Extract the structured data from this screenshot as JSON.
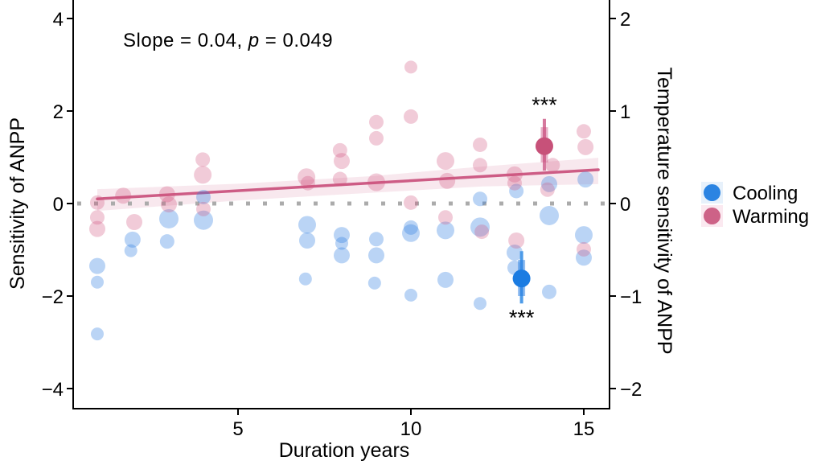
{
  "chart_data": {
    "type": "scatter",
    "title": "",
    "annotation": {
      "prefix": "Slope = 0.04, ",
      "italic_part": "p",
      "suffix": " = 0.049",
      "color": "#d4688c"
    },
    "axes": {
      "left": {
        "label": "Sensitivity of ANPP",
        "ticks": [
          "4",
          "2",
          "0",
          "−2",
          "−4"
        ],
        "tick_values": [
          4,
          2,
          0,
          -2,
          -4
        ],
        "range": [
          -4.4,
          4.4
        ]
      },
      "right": {
        "label": "Temperature sensitivity of ANPP",
        "ticks": [
          "2",
          "1",
          "0",
          "−1",
          "−2"
        ],
        "tick_values_left_units": [
          4,
          2,
          0,
          -2,
          -4
        ],
        "range": [
          -2.2,
          2.2
        ]
      },
      "bottom": {
        "label": "Duration years",
        "ticks": [
          "5",
          "10",
          "15"
        ],
        "tick_values": [
          5,
          10,
          15
        ],
        "range": [
          0.2,
          15.7
        ]
      }
    },
    "grid": "off",
    "zero_line": {
      "y": 0,
      "color": "#ababab"
    },
    "regression": {
      "line": {
        "x1": 0.93,
        "y1": 0.1,
        "x2": 15.42,
        "y2": 0.73,
        "color": "#cd5c85"
      },
      "band": {
        "color": "rgba(205,90,133,0.14)",
        "polygon": [
          [
            0.93,
            0.31
          ],
          [
            5.09,
            0.43
          ],
          [
            8.81,
            0.59
          ],
          [
            12.07,
            0.8
          ],
          [
            15.42,
            0.99
          ],
          [
            15.42,
            0.42
          ],
          [
            12.07,
            0.37
          ],
          [
            8.81,
            0.23
          ],
          [
            5.09,
            0.07
          ],
          [
            0.93,
            -0.16
          ]
        ]
      }
    },
    "series": [
      {
        "name": "Cooling",
        "point_color": "rgba(45,125,226,0.33)",
        "mean_color": "#1b7ce2",
        "err_thin_color": "#4d9be8",
        "err_thick_color": "rgba(40,125,225,0.5)",
        "points": [
          [
            0.93,
            -1.35,
            10
          ],
          [
            0.93,
            -1.7,
            8
          ],
          [
            0.93,
            -2.82,
            8
          ],
          [
            1.95,
            -0.78,
            10
          ],
          [
            1.9,
            -1.02,
            8
          ],
          [
            3,
            -0.33,
            12
          ],
          [
            2.95,
            -0.82,
            9
          ],
          [
            4,
            0.14,
            9
          ],
          [
            4,
            -0.36,
            12
          ],
          [
            7,
            -0.46,
            11
          ],
          [
            7,
            -0.8,
            10
          ],
          [
            6.95,
            -1.63,
            8
          ],
          [
            8,
            -0.68,
            10
          ],
          [
            8,
            -0.86,
            8
          ],
          [
            8,
            -1.12,
            10
          ],
          [
            9,
            -0.77,
            9
          ],
          [
            9,
            -1.12,
            10
          ],
          [
            8.95,
            -1.72,
            8
          ],
          [
            10,
            -0.52,
            9
          ],
          [
            10,
            -0.64,
            11
          ],
          [
            10,
            -1.98,
            8
          ],
          [
            11,
            -0.58,
            11
          ],
          [
            11,
            -1.65,
            10
          ],
          [
            12,
            0.1,
            9
          ],
          [
            12,
            -0.51,
            12
          ],
          [
            12,
            -2.16,
            8
          ],
          [
            13.05,
            0.27,
            9
          ],
          [
            13,
            -1.06,
            10
          ],
          [
            13,
            -1.39,
            9
          ],
          [
            14,
            0.42,
            10
          ],
          [
            14,
            -0.26,
            12
          ],
          [
            14,
            -1.91,
            9
          ],
          [
            15.05,
            0.52,
            10
          ],
          [
            15,
            -0.68,
            11
          ],
          [
            15,
            -1.17,
            10
          ]
        ]
      },
      {
        "name": "Warming",
        "point_color": "rgba(208,82,126,0.30)",
        "mean_color": "#c75179",
        "err_thin_color": "#d6789d",
        "err_thick_color": "rgba(205,85,130,0.45)",
        "points": [
          [
            0.93,
            0.02,
            9
          ],
          [
            0.93,
            -0.3,
            9
          ],
          [
            0.93,
            -0.55,
            10
          ],
          [
            1.68,
            0.17,
            10
          ],
          [
            2,
            -0.4,
            10
          ],
          [
            2.95,
            0.2,
            10
          ],
          [
            3,
            -0.02,
            10
          ],
          [
            3.98,
            0.95,
            9
          ],
          [
            3.98,
            0.62,
            11
          ],
          [
            4,
            -0.12,
            9
          ],
          [
            6.98,
            0.57,
            11
          ],
          [
            7.02,
            0.44,
            9
          ],
          [
            7.95,
            1.15,
            9
          ],
          [
            8,
            0.92,
            10
          ],
          [
            7.95,
            0.53,
            9
          ],
          [
            9,
            1.76,
            9
          ],
          [
            9,
            1.41,
            9
          ],
          [
            9,
            0.46,
            11
          ],
          [
            10,
            2.95,
            8
          ],
          [
            10,
            1.88,
            9
          ],
          [
            10,
            0.02,
            9
          ],
          [
            11,
            0.92,
            11
          ],
          [
            11.05,
            0.49,
            10
          ],
          [
            11,
            -0.3,
            9
          ],
          [
            12,
            1.27,
            9
          ],
          [
            12,
            0.83,
            9
          ],
          [
            12.05,
            -0.61,
            9
          ],
          [
            13,
            0.63,
            10
          ],
          [
            13,
            0.44,
            9
          ],
          [
            13.05,
            -0.8,
            10
          ],
          [
            14.1,
            0.83,
            9
          ],
          [
            13.95,
            0.3,
            9
          ],
          [
            15,
            1.56,
            9
          ],
          [
            15.05,
            1.22,
            10
          ],
          [
            15,
            -0.99,
            9
          ]
        ]
      }
    ],
    "means": [
      {
        "series": "Cooling",
        "x": 13.2,
        "y": -1.62,
        "err": [
          -2.16,
          -1.03
        ],
        "box": [
          -2.0,
          -1.22
        ],
        "sig": "***",
        "sig_side": "below"
      },
      {
        "series": "Warming",
        "x": 13.86,
        "y": 1.24,
        "err": [
          0.71,
          1.83
        ],
        "box": [
          0.89,
          1.65
        ],
        "sig": "***",
        "sig_side": "above"
      }
    ],
    "sig_color": "#4a4a4a"
  },
  "legend": {
    "items": [
      {
        "label": "Cooling",
        "dot_color": "#2b84e2",
        "key_bg": "#e7f1fb"
      },
      {
        "label": "Warming",
        "dot_color": "#cd6287",
        "key_bg": "#fbe9f0"
      }
    ]
  }
}
